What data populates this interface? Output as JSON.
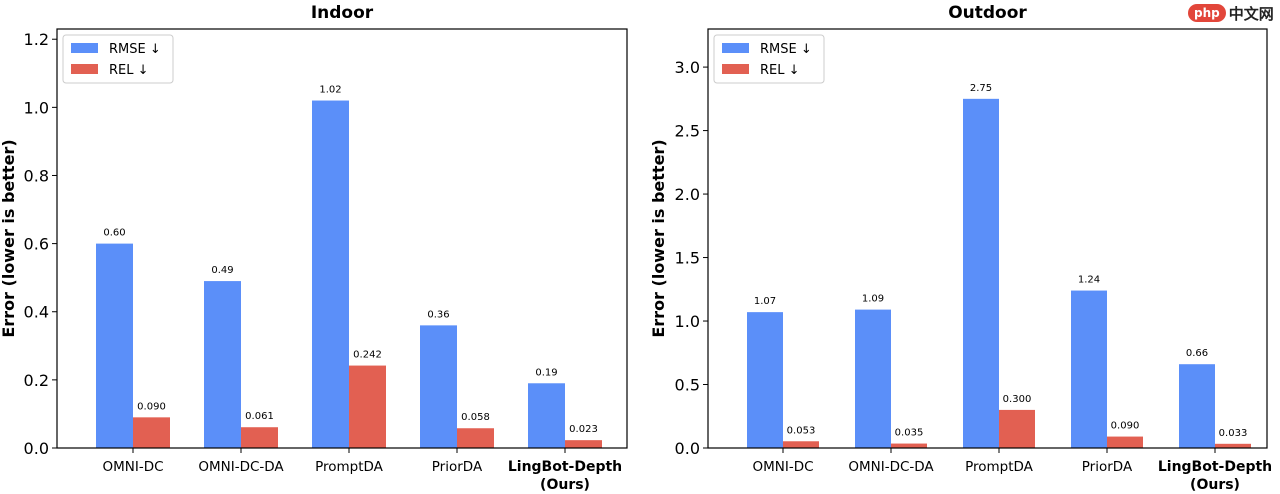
{
  "chart_data": [
    {
      "type": "bar",
      "title": "Indoor",
      "ylabel": "Error (lower is better)",
      "xlabel": "",
      "categories": [
        "OMNI-DC",
        "OMNI-DC-DA",
        "PromptDA",
        "PriorDA",
        "LingBot-Depth\n(Ours)"
      ],
      "bold_category": "LingBot-Depth\n(Ours)",
      "ylim": [
        0,
        1.23
      ],
      "yticks": [
        "0.0",
        "0.2",
        "0.4",
        "0.6",
        "0.8",
        "1.0",
        "1.2"
      ],
      "legend_position": "top-left",
      "grid": false,
      "series": [
        {
          "name": "RMSE ↓",
          "color": "#5b8ff9",
          "values": [
            0.6,
            0.49,
            1.02,
            0.36,
            0.19
          ],
          "labels": [
            "0.60",
            "0.49",
            "1.02",
            "0.36",
            "0.19"
          ]
        },
        {
          "name": "REL ↓",
          "color": "#e26052",
          "values": [
            0.09,
            0.061,
            0.242,
            0.058,
            0.023
          ],
          "labels": [
            "0.090",
            "0.061",
            "0.242",
            "0.058",
            "0.023"
          ]
        }
      ]
    },
    {
      "type": "bar",
      "title": "Outdoor",
      "ylabel": "Error (lower is better)",
      "xlabel": "",
      "categories": [
        "OMNI-DC",
        "OMNI-DC-DA",
        "PromptDA",
        "PriorDA",
        "LingBot-Depth\n(Ours)"
      ],
      "bold_category": "LingBot-Depth\n(Ours)",
      "ylim": [
        0,
        3.3
      ],
      "yticks": [
        "0.0",
        "0.5",
        "1.0",
        "1.5",
        "2.0",
        "2.5",
        "3.0"
      ],
      "legend_position": "top-left",
      "grid": false,
      "series": [
        {
          "name": "RMSE ↓",
          "color": "#5b8ff9",
          "values": [
            1.07,
            1.09,
            2.75,
            1.24,
            0.66
          ],
          "labels": [
            "1.07",
            "1.09",
            "2.75",
            "1.24",
            "0.66"
          ]
        },
        {
          "name": "REL ↓",
          "color": "#e26052",
          "values": [
            0.053,
            0.035,
            0.3,
            0.09,
            0.033
          ],
          "labels": [
            "0.053",
            "0.035",
            "0.300",
            "0.090",
            "0.033"
          ]
        }
      ]
    }
  ],
  "watermark": {
    "badge": "php",
    "text": "中文网"
  }
}
